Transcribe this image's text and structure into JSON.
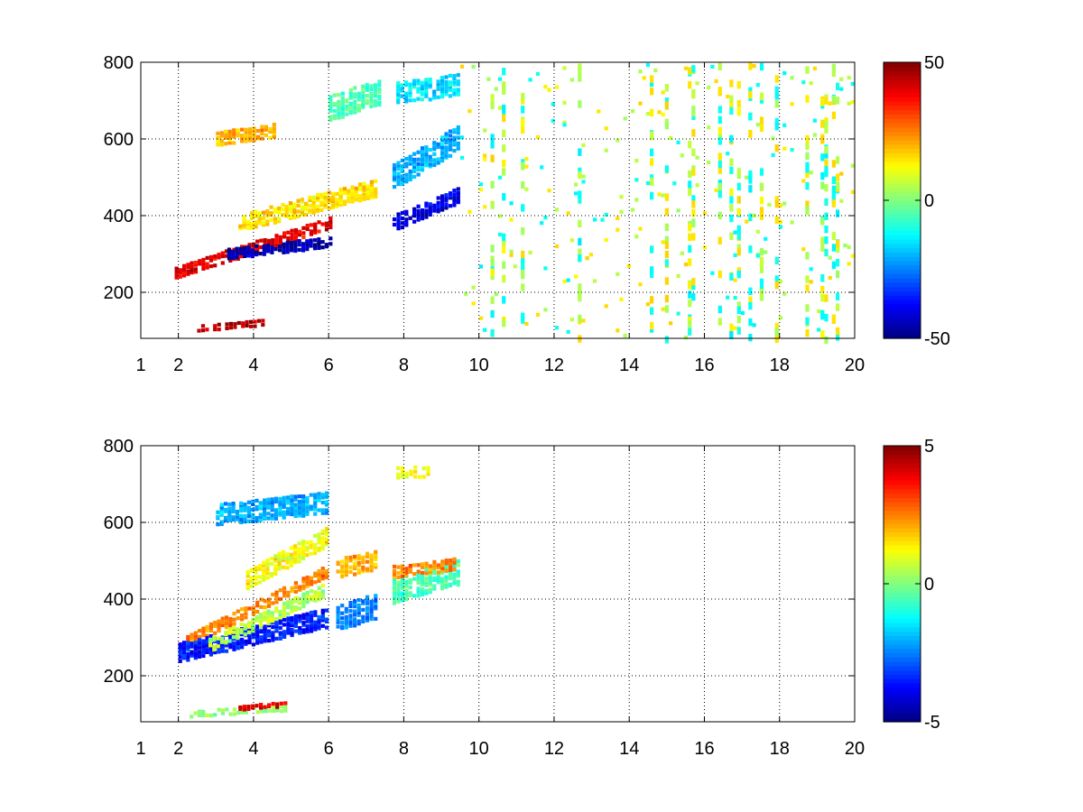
{
  "chart_data": [
    {
      "type": "heatmap",
      "title": "",
      "xlabel": "",
      "ylabel": "",
      "xlim": [
        1,
        20
      ],
      "ylim": [
        80,
        800
      ],
      "xticks": [
        1,
        2,
        4,
        6,
        8,
        10,
        12,
        14,
        16,
        18,
        20
      ],
      "xtick_labels": [
        "1",
        "2",
        "4",
        "6",
        "8",
        "10",
        "12",
        "14",
        "16",
        "18",
        "20"
      ],
      "yticks": [
        200,
        400,
        600,
        800
      ],
      "ytick_labels": [
        "200",
        "400",
        "600",
        "800"
      ],
      "grid": true,
      "colormap": "jet",
      "clim": [
        -50,
        50
      ],
      "colorbar_ticks": [
        -50,
        0,
        50
      ],
      "colorbar_labels": [
        "-50",
        "0",
        "50"
      ],
      "features": [
        {
          "x": [
            1.9,
            6.0
          ],
          "y_start": 250,
          "y_end": 380,
          "value": 40,
          "width": 25
        },
        {
          "x": [
            3.3,
            6.0
          ],
          "y_start": 300,
          "y_end": 330,
          "value": -45,
          "width": 22
        },
        {
          "x": [
            3.6,
            7.2
          ],
          "y_start": 380,
          "y_end": 470,
          "value": 15,
          "width": 40
        },
        {
          "x": [
            7.7,
            9.4
          ],
          "y_start": 380,
          "y_end": 450,
          "value": -40,
          "width": 35
        },
        {
          "x": [
            7.7,
            9.4
          ],
          "y_start": 500,
          "y_end": 600,
          "value": -20,
          "width": 60
        },
        {
          "x": [
            3.0,
            4.5
          ],
          "y_start": 600,
          "y_end": 620,
          "value": 20,
          "width": 30
        },
        {
          "x": [
            6.0,
            7.3
          ],
          "y_start": 680,
          "y_end": 720,
          "value": -5,
          "width": 60
        },
        {
          "x": [
            7.8,
            9.4
          ],
          "y_start": 720,
          "y_end": 740,
          "value": -15,
          "width": 50
        },
        {
          "x": [
            2.5,
            4.2
          ],
          "y_start": 105,
          "y_end": 120,
          "value": 45,
          "width": 10
        }
      ],
      "sparse_range": {
        "x": [
          9.5,
          20
        ],
        "values": [
          -12,
          5,
          15
        ]
      }
    },
    {
      "type": "heatmap",
      "title": "",
      "xlabel": "",
      "ylabel": "",
      "xlim": [
        1,
        20
      ],
      "ylim": [
        80,
        800
      ],
      "xticks": [
        1,
        2,
        4,
        6,
        8,
        10,
        12,
        14,
        16,
        18,
        20
      ],
      "xtick_labels": [
        "1",
        "2",
        "4",
        "6",
        "8",
        "10",
        "12",
        "14",
        "16",
        "18",
        "20"
      ],
      "yticks": [
        200,
        400,
        600,
        800
      ],
      "ytick_labels": [
        "200",
        "400",
        "600",
        "800"
      ],
      "grid": true,
      "colormap": "jet",
      "clim": [
        -5,
        5
      ],
      "colorbar_ticks": [
        -5,
        0,
        5
      ],
      "colorbar_labels": [
        "-5",
        "0",
        "5"
      ],
      "features": [
        {
          "x": [
            2.0,
            5.9
          ],
          "y_start": 280,
          "y_end": 470,
          "value": 2.5,
          "width": 25
        },
        {
          "x": [
            2.0,
            5.9
          ],
          "y_start": 260,
          "y_end": 350,
          "value": -3.5,
          "width": 45
        },
        {
          "x": [
            2.8,
            5.8
          ],
          "y_start": 280,
          "y_end": 420,
          "value": 0.5,
          "width": 30
        },
        {
          "x": [
            3.8,
            5.9
          ],
          "y_start": 450,
          "y_end": 560,
          "value": 1.2,
          "width": 45
        },
        {
          "x": [
            3.0,
            5.9
          ],
          "y_start": 620,
          "y_end": 650,
          "value": -2,
          "width": 50
        },
        {
          "x": [
            6.2,
            7.2
          ],
          "y_start": 350,
          "y_end": 380,
          "value": -2.5,
          "width": 60
        },
        {
          "x": [
            6.2,
            7.2
          ],
          "y_start": 480,
          "y_end": 500,
          "value": 2,
          "width": 45
        },
        {
          "x": [
            7.7,
            9.4
          ],
          "y_start": 420,
          "y_end": 470,
          "value": -0.5,
          "width": 60
        },
        {
          "x": [
            7.7,
            9.3
          ],
          "y_start": 470,
          "y_end": 490,
          "value": 2.5,
          "width": 25
        },
        {
          "x": [
            7.8,
            8.6
          ],
          "y_start": 730,
          "y_end": 730,
          "value": 1.2,
          "width": 25
        },
        {
          "x": [
            2.3,
            4.8
          ],
          "y_start": 100,
          "y_end": 115,
          "value": 0.2,
          "width": 10
        },
        {
          "x": [
            3.6,
            4.8
          ],
          "y_start": 115,
          "y_end": 125,
          "value": 4,
          "width": 6
        }
      ],
      "sparse_range": null
    }
  ]
}
